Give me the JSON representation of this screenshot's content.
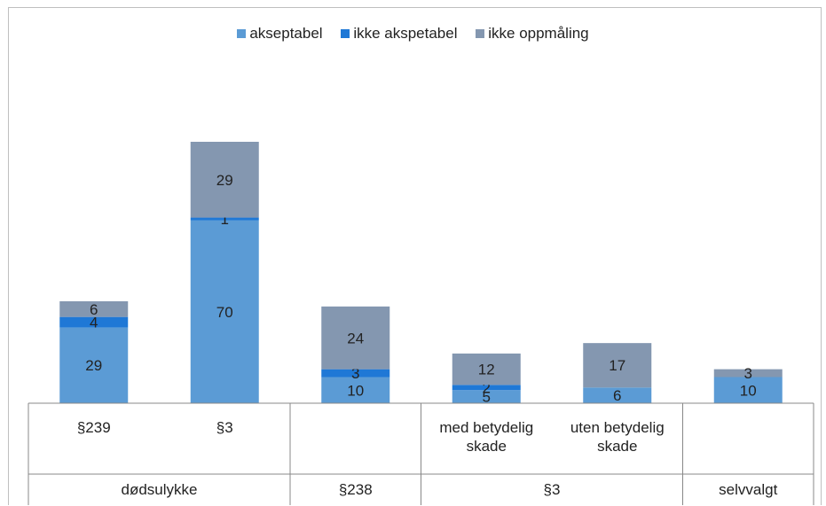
{
  "chart_data": {
    "type": "bar",
    "stacked": true,
    "title": "",
    "xlabel": "",
    "ylabel": "",
    "colors": [
      "#5b9bd5",
      "#1f78d6",
      "#8497b0"
    ],
    "categories": [
      "§239",
      "§3",
      "",
      "med betydelig skade",
      "uten betydelig skade",
      ""
    ],
    "category_lines": [
      [
        "§239"
      ],
      [
        "§3"
      ],
      [],
      [
        "med betydelig",
        "skade"
      ],
      [
        "uten betydelig",
        "skade"
      ],
      []
    ],
    "groups": [
      {
        "label": "dødsulykke",
        "span": 2
      },
      {
        "label": "§238",
        "span": 1
      },
      {
        "label": "§3",
        "span": 2
      },
      {
        "label": "selvvalgt",
        "span": 1
      }
    ],
    "series": [
      {
        "name": "akseptabel",
        "values": [
          29,
          70,
          10,
          5,
          6,
          10
        ]
      },
      {
        "name": "ikke akspetabel",
        "values": [
          4,
          1,
          3,
          2,
          0,
          0
        ]
      },
      {
        "name": "ikke oppmåling",
        "values": [
          6,
          29,
          24,
          12,
          17,
          3
        ]
      }
    ],
    "legend_position": "top",
    "grid": false,
    "ylim": [
      0,
      100
    ]
  }
}
